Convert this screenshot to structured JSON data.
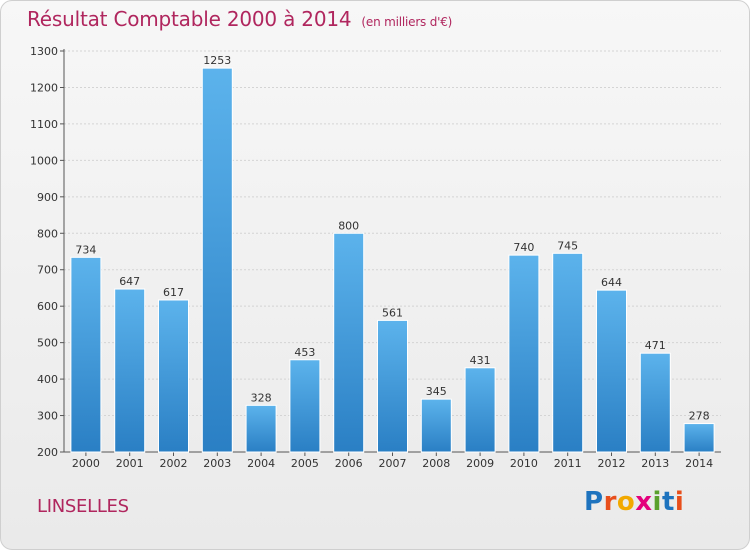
{
  "title": "Résultat Comptable 2000 à 2014",
  "subtitle": "(en milliers d'€)",
  "commune": "LINSELLES",
  "logo": {
    "letters": [
      "P",
      "r",
      "o",
      "x",
      "i",
      "t",
      "i"
    ],
    "colors": [
      "#1e73be",
      "#e84e1b",
      "#f2a900",
      "#e4007c",
      "#5aa02c",
      "#1e73be",
      "#e84e1b"
    ]
  },
  "chart_data": {
    "type": "bar",
    "title": "Résultat Comptable 2000 à 2014",
    "subtitle": "(en milliers d'€)",
    "xlabel": "",
    "ylabel": "",
    "ylim": [
      200,
      1300
    ],
    "yticks": [
      200,
      300,
      400,
      500,
      600,
      700,
      800,
      900,
      1000,
      1100,
      1200,
      1300
    ],
    "categories": [
      "2000",
      "2001",
      "2002",
      "2003",
      "2004",
      "2005",
      "2006",
      "2007",
      "2008",
      "2009",
      "2010",
      "2011",
      "2012",
      "2013",
      "2014"
    ],
    "values": [
      734,
      647,
      617,
      1253,
      328,
      453,
      800,
      561,
      345,
      431,
      740,
      745,
      644,
      471,
      278
    ],
    "bar_color": "#4a9fe0",
    "grid": true
  }
}
